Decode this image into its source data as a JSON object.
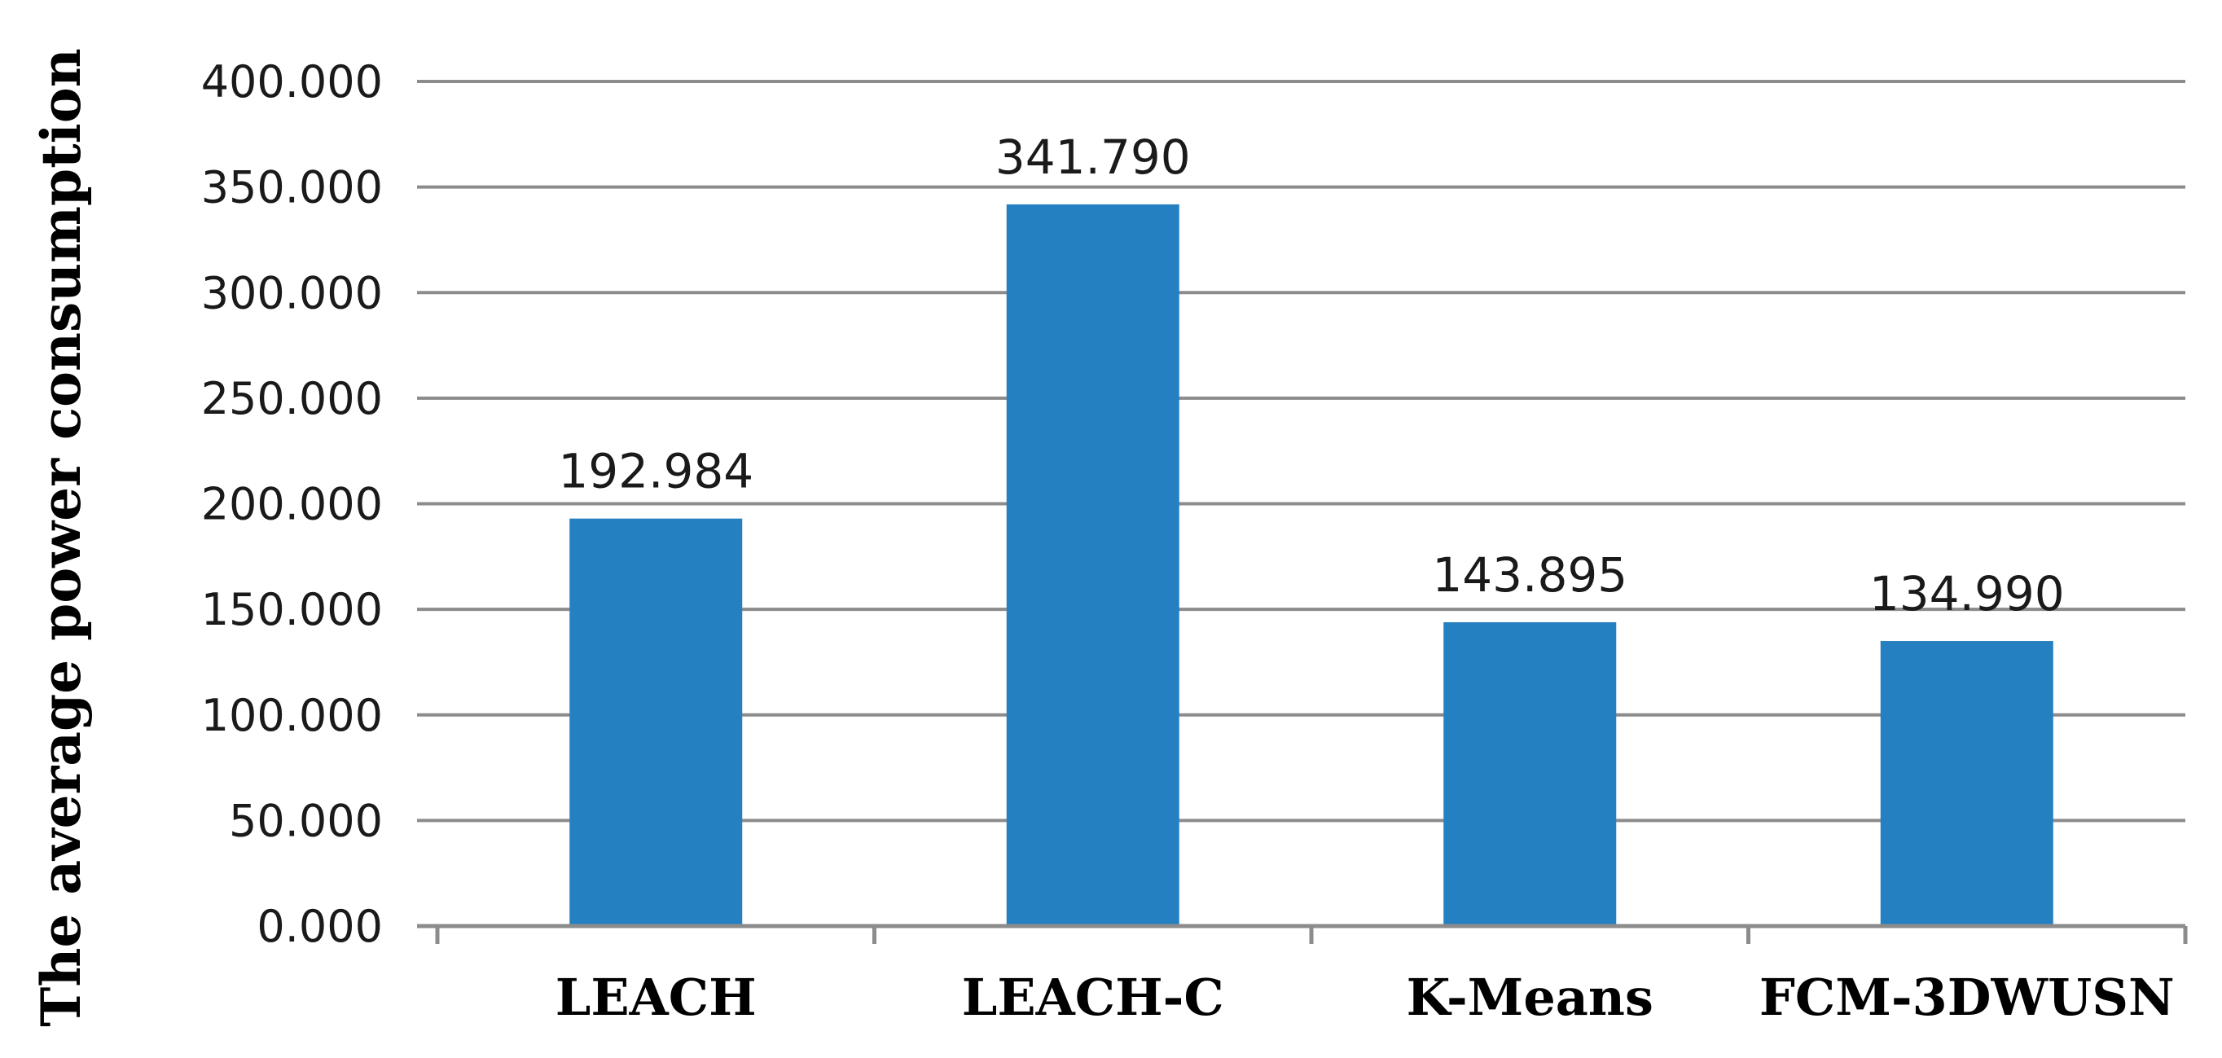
{
  "chart_data": {
    "type": "bar",
    "title": "",
    "xlabel": "",
    "ylabel": "The average power consumption",
    "categories": [
      "LEACH",
      "LEACH-C",
      "K-Means",
      "FCM-3DWUSN"
    ],
    "values": [
      192.984,
      341.79,
      143.895,
      134.99
    ],
    "value_labels": [
      "192.984",
      "341.790",
      "143.895",
      "134.990"
    ],
    "yticks": [
      "0.000",
      "50.000",
      "100.000",
      "150.000",
      "200.000",
      "250.000",
      "300.000",
      "350.000",
      "400.000"
    ],
    "ylim": [
      0,
      400
    ],
    "grid": true,
    "legend": "none",
    "colors": {
      "bar": "#2580C2",
      "grid": "#8c8c8c",
      "axis": "#8c8c8c"
    }
  }
}
